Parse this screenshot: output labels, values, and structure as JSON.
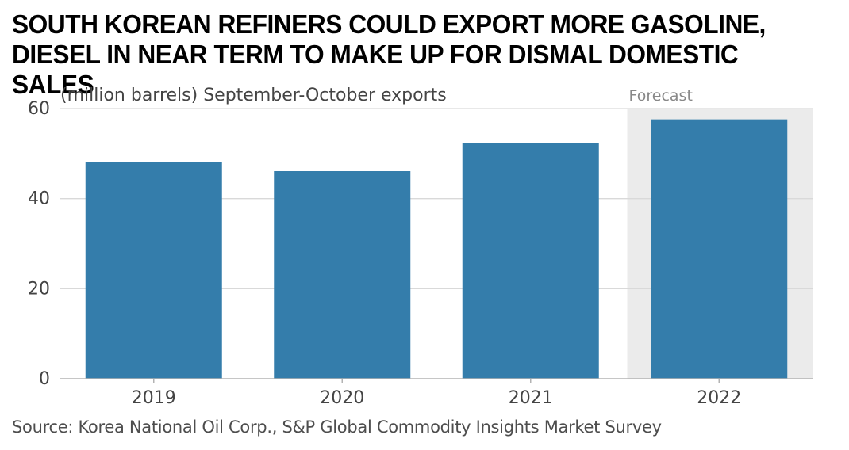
{
  "title_line1": "SOUTH KOREAN REFINERS COULD EXPORT MORE GASOLINE,",
  "title_line2": "DIESEL IN NEAR TERM TO MAKE UP FOR DISMAL DOMESTIC SALES",
  "source": "Source: Korea National Oil Corp., S&P Global Commodity Insights Market Survey",
  "colors": {
    "bar": "#347dab",
    "forecast_band": "#ebebeb",
    "grid": "#d9d9d9",
    "axis": "#b3b3b3",
    "text": "#333333"
  },
  "chart_data": {
    "type": "bar",
    "categories": [
      "2019",
      "2020",
      "2021",
      "2022"
    ],
    "values": [
      48.2,
      46.1,
      52.4,
      57.6
    ],
    "ylabel": "(million barrels) September-October exports",
    "ylim": [
      0,
      60
    ],
    "yticks": [
      0,
      20,
      40,
      60
    ],
    "grid": true,
    "forecast": {
      "label": "Forecast",
      "categories": [
        "2022"
      ]
    }
  }
}
